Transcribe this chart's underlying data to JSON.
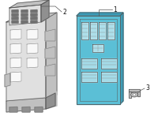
{
  "bg_color": "#ffffff",
  "fig_bg": "#ffffff",
  "label1": "1",
  "label2": "2",
  "label3": "3",
  "blue_color": "#5bbfd6",
  "blue_edge": "#3a9ab5",
  "gray_fill": "#e0e0e0",
  "gray_mid": "#c0c0c0",
  "gray_dark": "#909090",
  "gray_vdark": "#707070",
  "line_color": "#555555",
  "line_thin": "#777777",
  "white": "#ffffff",
  "hatching": "#aaaaaa"
}
